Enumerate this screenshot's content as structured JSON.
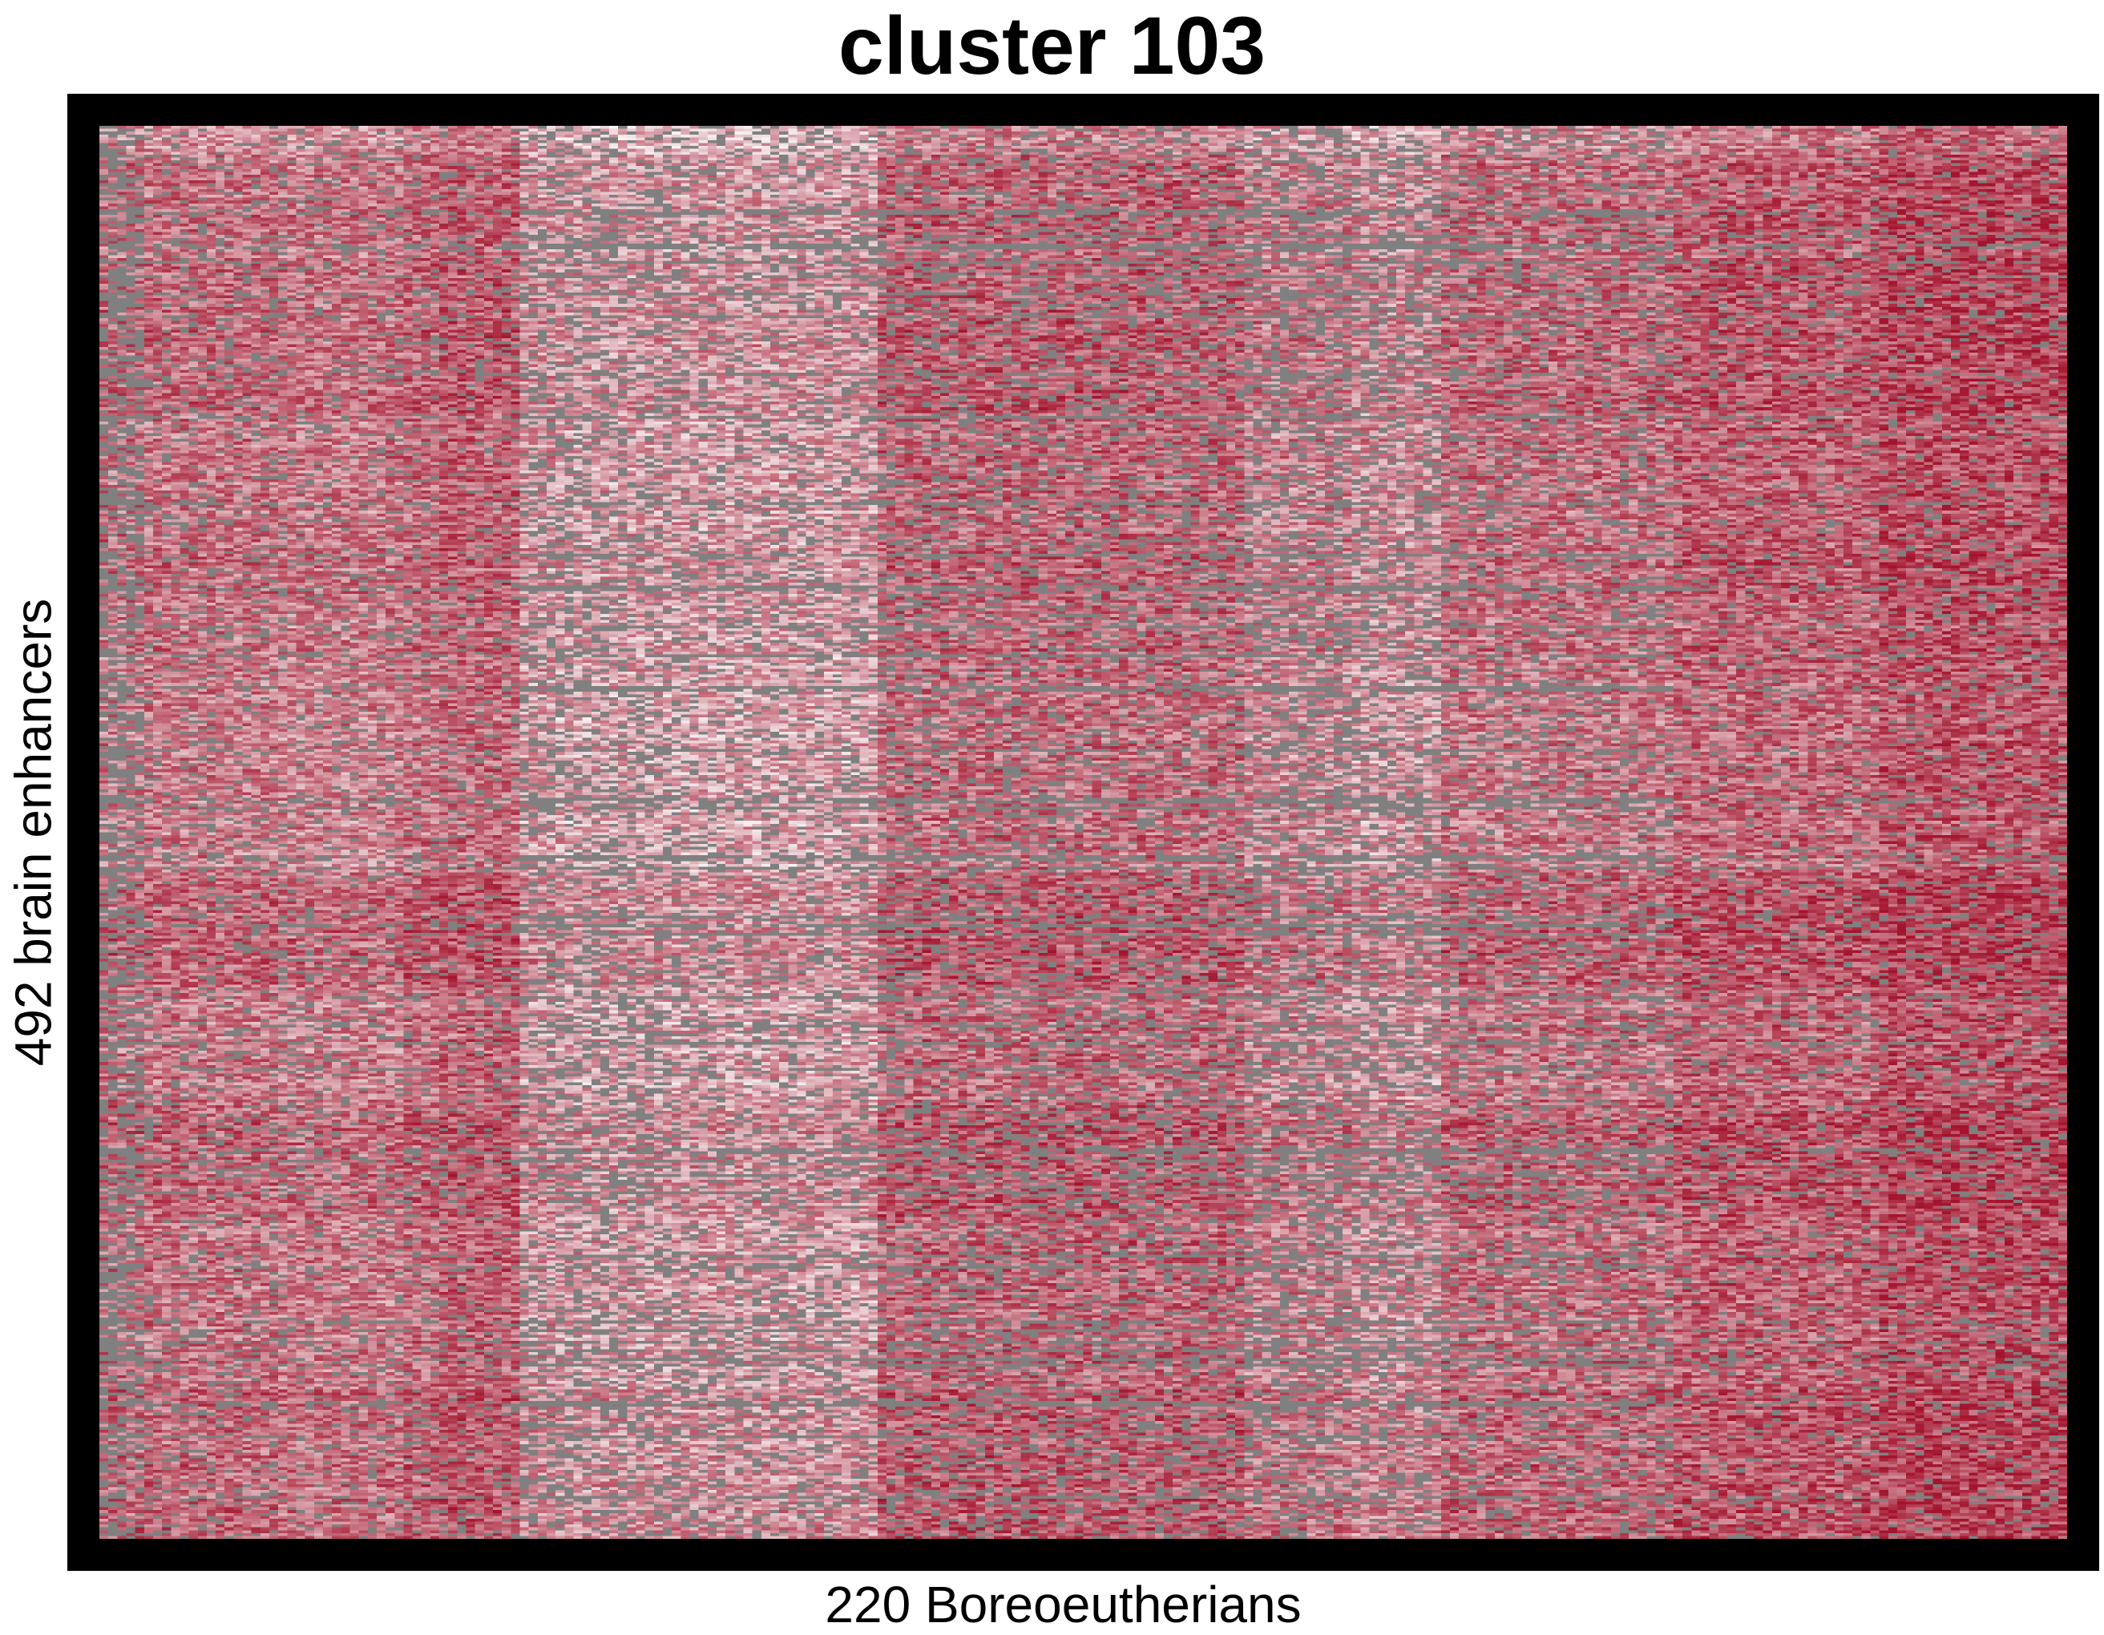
{
  "chart_data": {
    "type": "heatmap",
    "title": "cluster 103",
    "xlabel": "220 Boreoeutherians",
    "ylabel": "492 brain enhancers",
    "n_rows": 492,
    "n_cols": 220,
    "legend": "none",
    "grid": false,
    "colors": {
      "low": "#f7f2f2",
      "high": "#a3142e",
      "missing": "#808080",
      "frame": "#000000"
    },
    "column_blocks": [
      {
        "from": 0,
        "to": 5,
        "level": 0.55,
        "missing": 0.42
      },
      {
        "from": 5,
        "to": 20,
        "level": 0.55,
        "missing": 0.14
      },
      {
        "from": 20,
        "to": 34,
        "level": 0.5,
        "missing": 0.12
      },
      {
        "from": 34,
        "to": 38,
        "level": 0.6,
        "missing": 0.12
      },
      {
        "from": 38,
        "to": 47,
        "level": 0.68,
        "missing": 0.12
      },
      {
        "from": 47,
        "to": 51,
        "level": 0.3,
        "missing": 0.25
      },
      {
        "from": 51,
        "to": 65,
        "level": 0.24,
        "missing": 0.26
      },
      {
        "from": 65,
        "to": 87,
        "level": 0.24,
        "missing": 0.2
      },
      {
        "from": 87,
        "to": 128,
        "level": 0.66,
        "missing": 0.22
      },
      {
        "from": 128,
        "to": 140,
        "level": 0.44,
        "missing": 0.3
      },
      {
        "from": 140,
        "to": 150,
        "level": 0.34,
        "missing": 0.26
      },
      {
        "from": 150,
        "to": 176,
        "level": 0.58,
        "missing": 0.2
      },
      {
        "from": 176,
        "to": 199,
        "level": 0.7,
        "missing": 0.1
      },
      {
        "from": 199,
        "to": 220,
        "level": 0.84,
        "missing": 0.1
      }
    ],
    "row_bands": [
      {
        "from": 0,
        "to": 10,
        "level": 0.3
      },
      {
        "from": 10,
        "to": 60,
        "level": 0.6
      },
      {
        "from": 60,
        "to": 100,
        "level": 0.7
      },
      {
        "from": 100,
        "to": 160,
        "level": 0.6
      },
      {
        "from": 160,
        "to": 200,
        "level": 0.55
      },
      {
        "from": 200,
        "to": 260,
        "level": 0.48
      },
      {
        "from": 260,
        "to": 300,
        "level": 0.78
      },
      {
        "from": 300,
        "to": 340,
        "level": 0.52
      },
      {
        "from": 340,
        "to": 380,
        "level": 0.72
      },
      {
        "from": 380,
        "to": 440,
        "level": 0.58
      },
      {
        "from": 440,
        "to": 492,
        "level": 0.72
      }
    ]
  }
}
